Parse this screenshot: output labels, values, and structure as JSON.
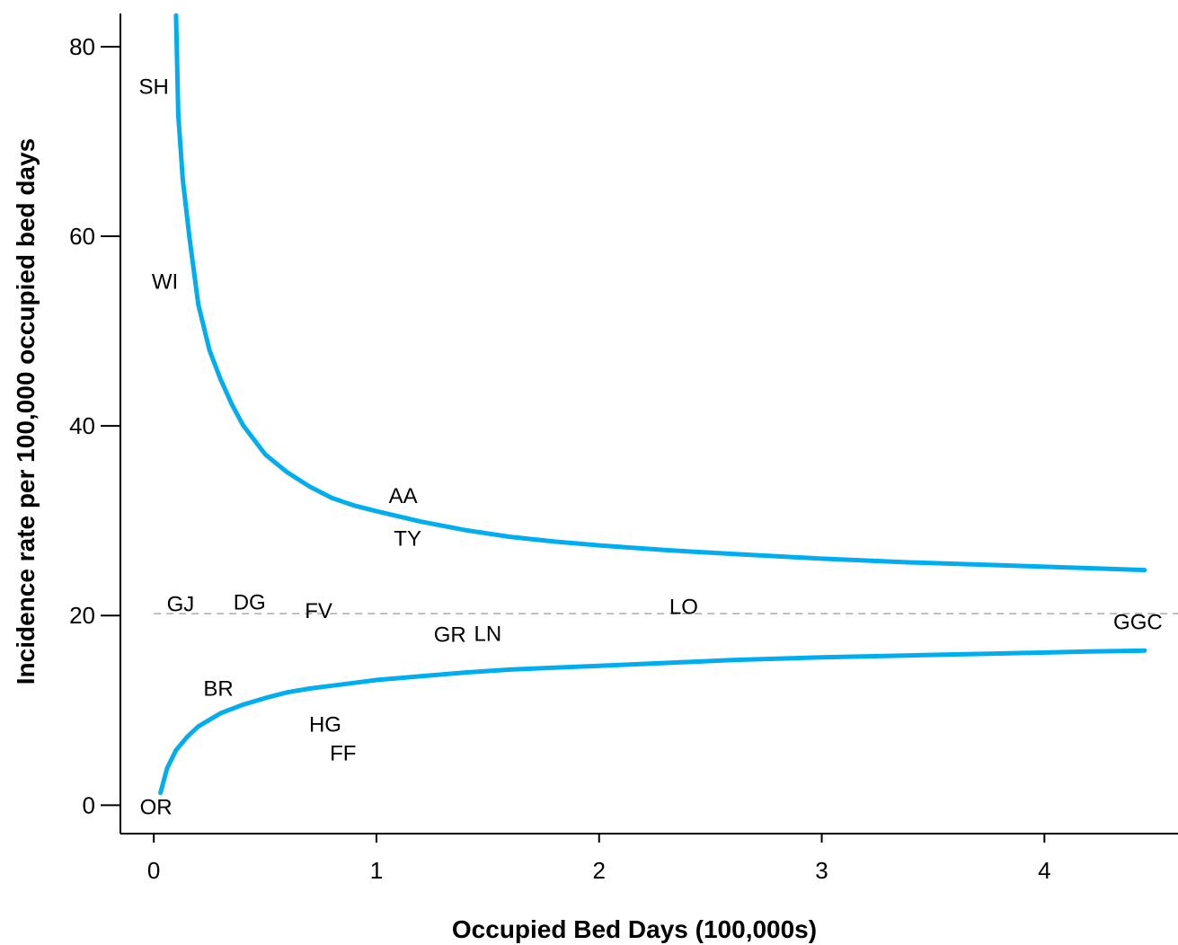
{
  "chart_data": {
    "type": "scatter",
    "subtype": "funnel-plot",
    "title": "",
    "xlabel": "Occupied Bed Days (100,000s)",
    "ylabel": "Incidence rate per 100,000 occupied bed days",
    "xlim": [
      -0.15,
      4.6
    ],
    "ylim": [
      -3,
      83.5
    ],
    "xticks": [
      0,
      1,
      2,
      3,
      4
    ],
    "yticks": [
      0,
      20,
      40,
      60,
      80
    ],
    "grid": false,
    "legend": "none",
    "reference_line": {
      "y": 20.2,
      "style": "dashed",
      "color": "#aaaaaa"
    },
    "colors": {
      "limits": "#00aeef",
      "highlight": "#ff0000",
      "default": "#000000"
    },
    "points": [
      {
        "label": "SH",
        "x": 0.0,
        "y": 75.8
      },
      {
        "label": "WI",
        "x": 0.05,
        "y": 55.2
      },
      {
        "label": "AA",
        "x": 1.12,
        "y": 32.6,
        "highlight": true
      },
      {
        "label": "TY",
        "x": 1.14,
        "y": 28.1
      },
      {
        "label": "GJ",
        "x": 0.12,
        "y": 21.2
      },
      {
        "label": "DG",
        "x": 0.43,
        "y": 21.4
      },
      {
        "label": "FV",
        "x": 0.74,
        "y": 20.5
      },
      {
        "label": "LO",
        "x": 2.38,
        "y": 20.9
      },
      {
        "label": "GGC",
        "x": 4.42,
        "y": 19.3
      },
      {
        "label": "GR",
        "x": 1.33,
        "y": 18.0
      },
      {
        "label": "LN",
        "x": 1.5,
        "y": 18.1
      },
      {
        "label": "BR",
        "x": 0.29,
        "y": 12.3
      },
      {
        "label": "HG",
        "x": 0.77,
        "y": 8.5
      },
      {
        "label": "FF",
        "x": 0.85,
        "y": 5.5
      },
      {
        "label": "OR",
        "x": 0.01,
        "y": -0.2
      }
    ],
    "series": [
      {
        "name": "",
        "role": "upper-limit",
        "x": [
          0.1,
          0.11,
          0.13,
          0.16,
          0.2,
          0.25,
          0.3,
          0.35,
          0.4,
          0.5,
          0.6,
          0.7,
          0.8,
          0.9,
          1.0,
          1.2,
          1.4,
          1.6,
          1.8,
          2.0,
          2.3,
          2.6,
          3.0,
          3.4,
          3.8,
          4.2,
          4.45
        ],
        "y": [
          83.3,
          72.8,
          66.0,
          59.9,
          52.8,
          48.0,
          44.9,
          42.3,
          40.1,
          37.0,
          35.1,
          33.6,
          32.4,
          31.6,
          31.0,
          29.9,
          29.0,
          28.3,
          27.8,
          27.4,
          26.9,
          26.5,
          26.0,
          25.6,
          25.3,
          25.0,
          24.8
        ]
      },
      {
        "name": "",
        "role": "lower-limit",
        "x": [
          0.03,
          0.06,
          0.1,
          0.15,
          0.2,
          0.25,
          0.3,
          0.4,
          0.5,
          0.6,
          0.7,
          0.8,
          0.9,
          1.0,
          1.2,
          1.4,
          1.6,
          1.8,
          2.0,
          2.3,
          2.6,
          3.0,
          3.4,
          3.8,
          4.2,
          4.45
        ],
        "y": [
          1.3,
          3.9,
          5.8,
          7.2,
          8.3,
          9.0,
          9.7,
          10.6,
          11.3,
          11.9,
          12.3,
          12.6,
          12.9,
          13.2,
          13.6,
          14.0,
          14.3,
          14.5,
          14.7,
          15.0,
          15.3,
          15.6,
          15.8,
          16.0,
          16.2,
          16.3
        ]
      }
    ]
  }
}
